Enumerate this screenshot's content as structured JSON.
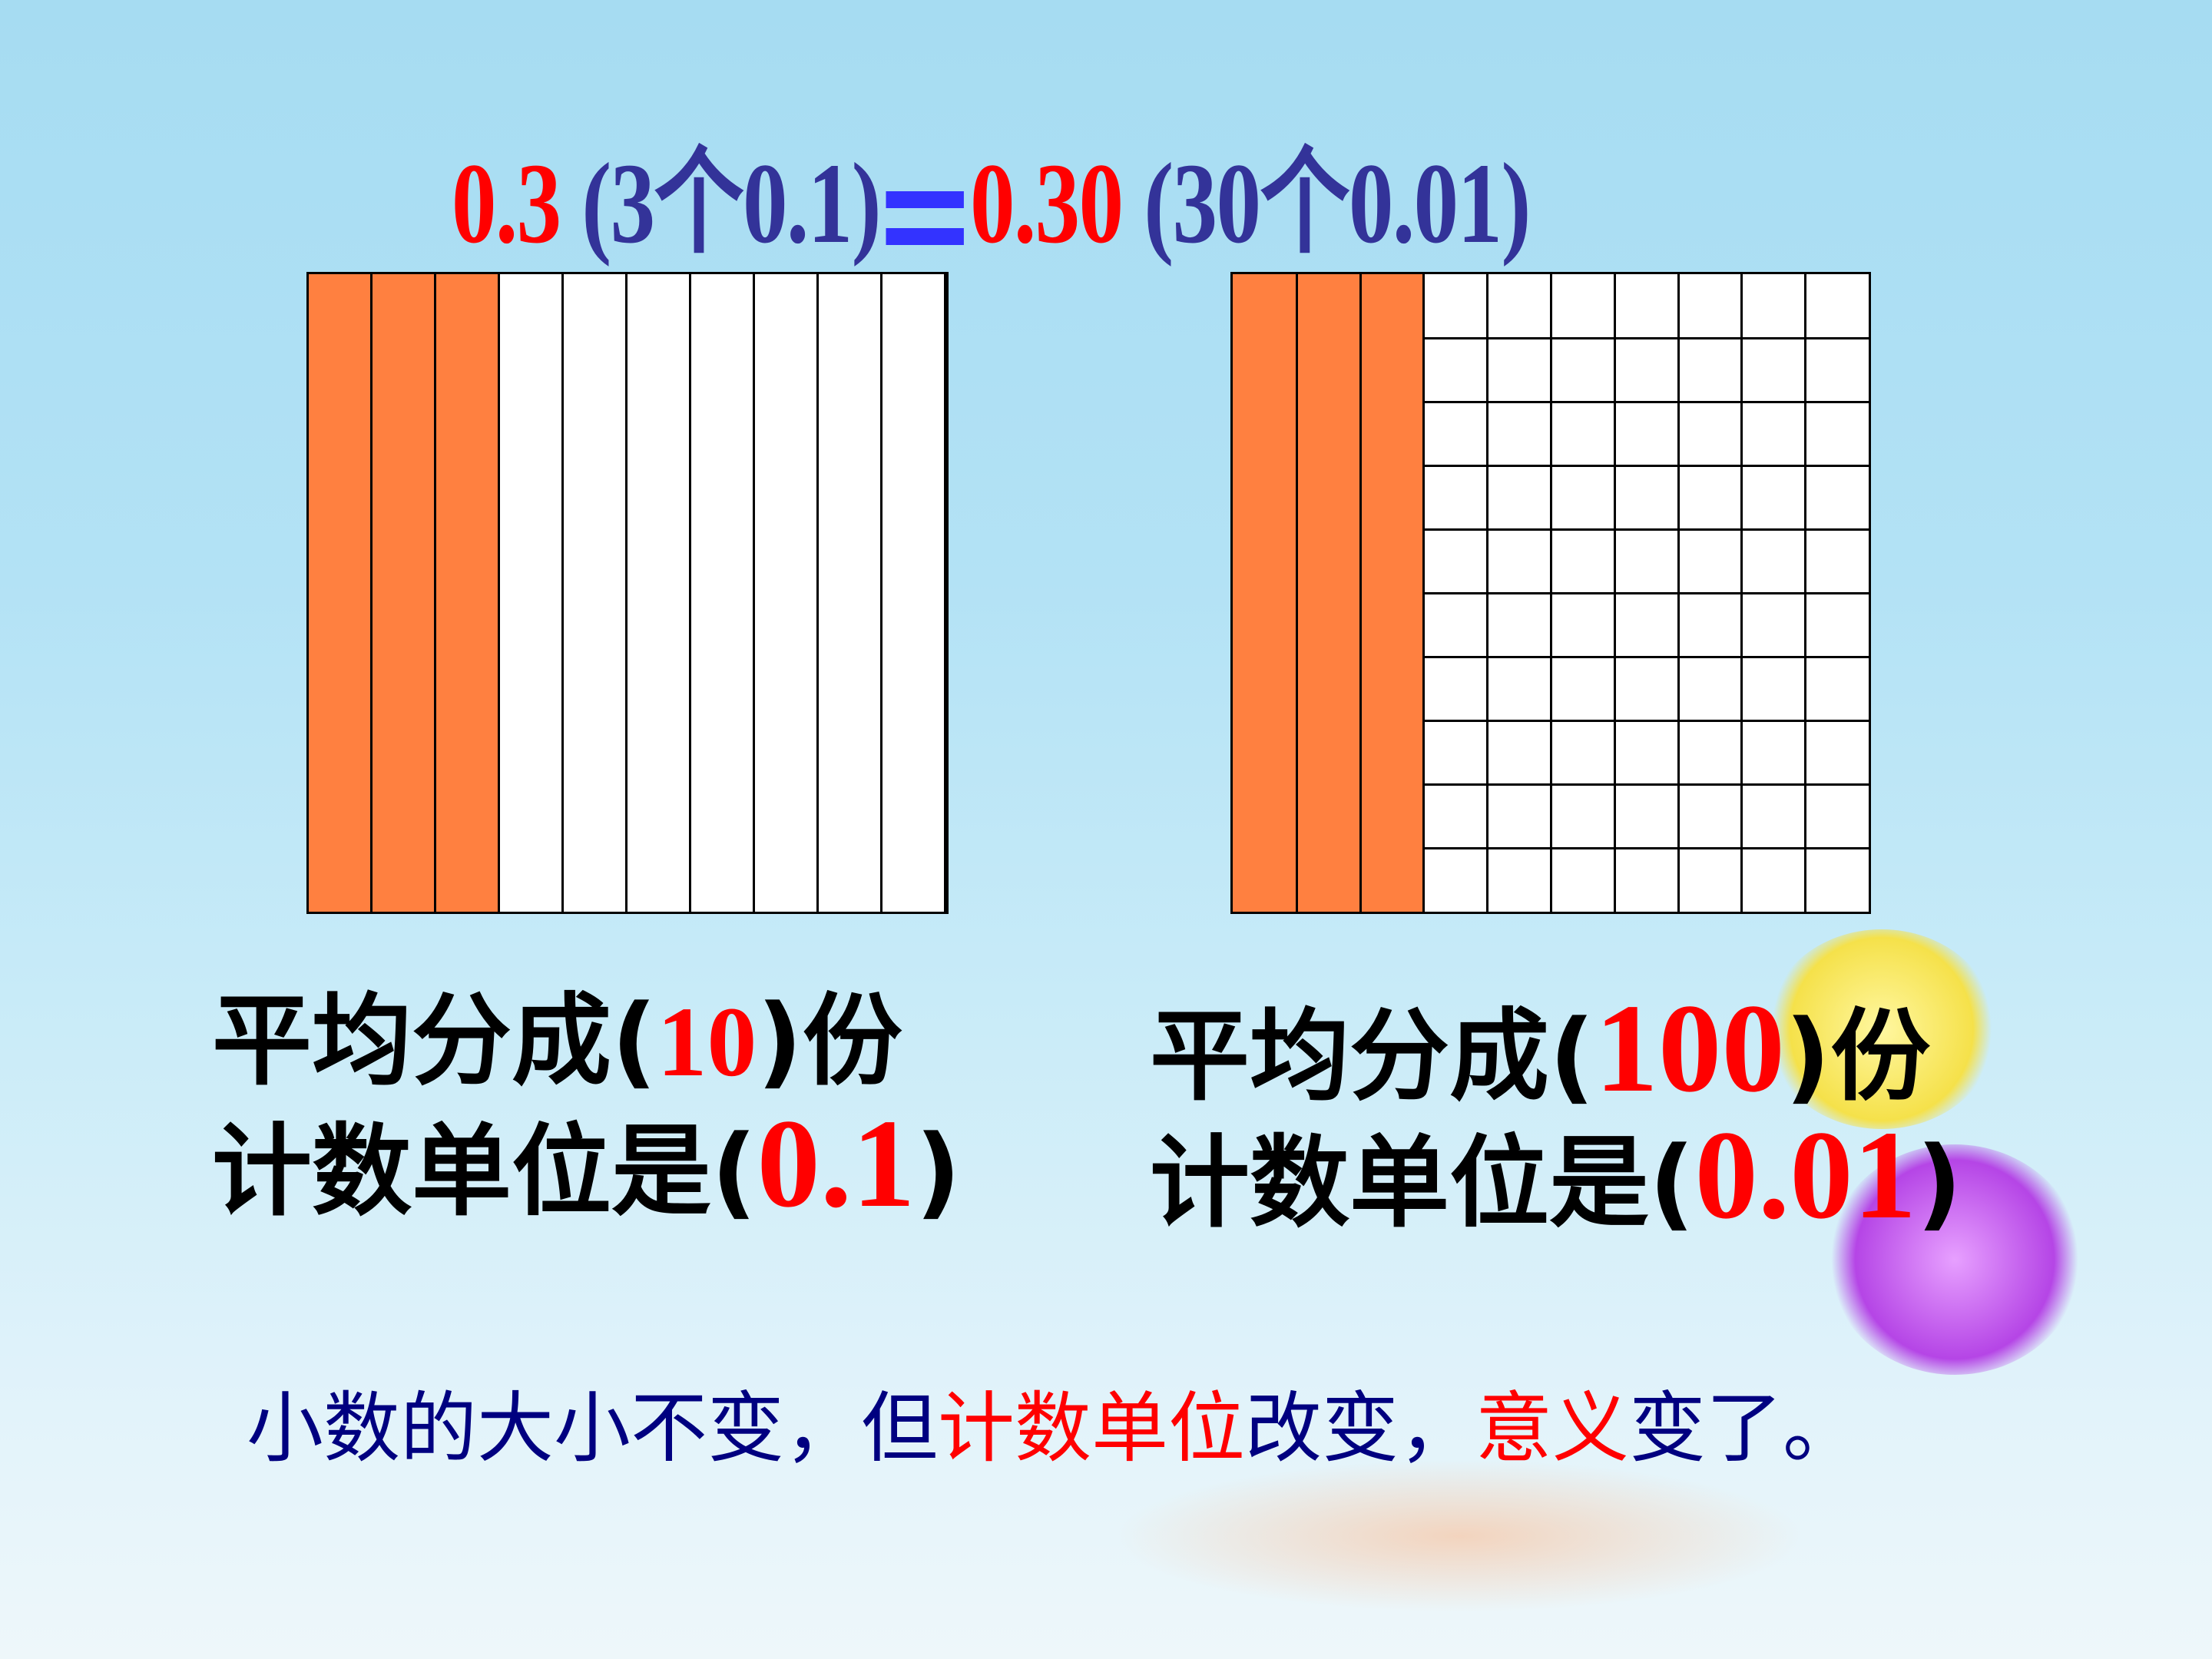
{
  "title": {
    "left_value": "0.3",
    "left_detail": "(3个0.1)",
    "right_value": "0.30",
    "right_detail": "(30个0.01)"
  },
  "left_model": {
    "columns": 10,
    "shaded_columns": 3,
    "line1_prefix": "平均分成(",
    "line1_value": "10",
    "line1_suffix": ")份",
    "line2_prefix": "计数单位是(",
    "line2_value": "0.1",
    "line2_suffix": ")"
  },
  "right_model": {
    "columns": 10,
    "rows": 10,
    "shaded_columns": 3,
    "line1_prefix": "平均分成(",
    "line1_value": "100",
    "line1_suffix": ")份",
    "line2_prefix": "计数单位是(",
    "line2_value": "0.01",
    "line2_suffix": ")"
  },
  "conclusion": {
    "part1": "小数的大小不变，但",
    "part2": "计数单位",
    "part3": "改变，",
    "part4": "意义",
    "part5": "变了。"
  },
  "colors": {
    "shade": "#ff8040",
    "value_red": "#ff0000",
    "detail_navy": "#333399",
    "equals_blue": "#3333ff",
    "conclusion_navy": "#000080"
  }
}
